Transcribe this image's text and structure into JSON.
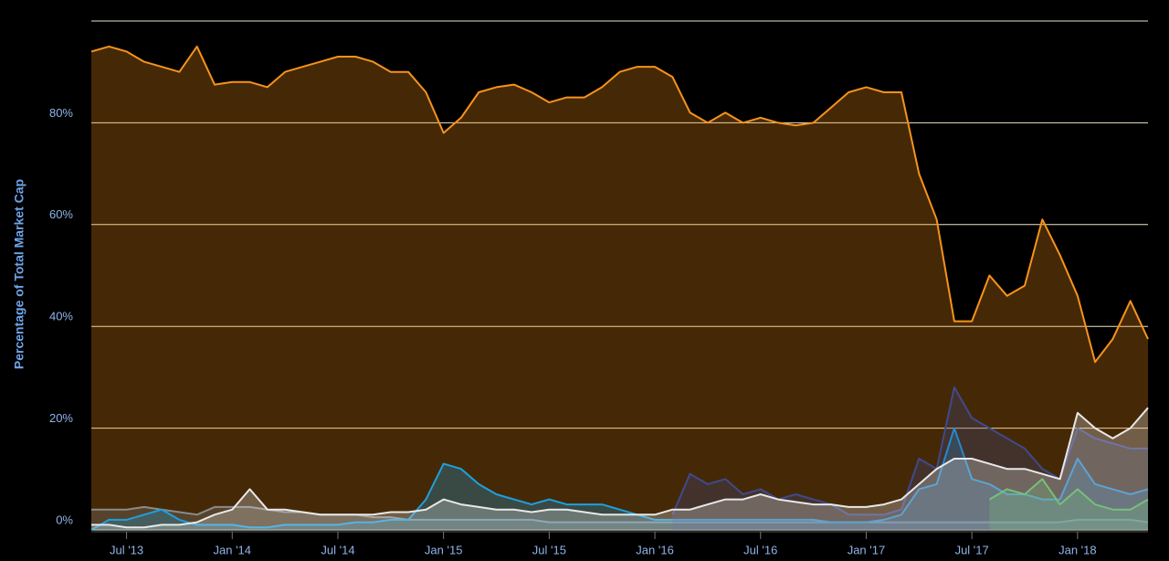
{
  "chart_data": {
    "type": "area",
    "y_label": "Percentage of Total Market Cap",
    "x": [
      "2013-05",
      "2013-06",
      "2013-07",
      "2013-08",
      "2013-09",
      "2013-10",
      "2013-11",
      "2013-12",
      "2014-01",
      "2014-02",
      "2014-03",
      "2014-04",
      "2014-05",
      "2014-06",
      "2014-07",
      "2014-08",
      "2014-09",
      "2014-10",
      "2014-11",
      "2014-12",
      "2015-01",
      "2015-02",
      "2015-03",
      "2015-04",
      "2015-05",
      "2015-06",
      "2015-07",
      "2015-08",
      "2015-09",
      "2015-10",
      "2015-11",
      "2015-12",
      "2016-01",
      "2016-02",
      "2016-03",
      "2016-04",
      "2016-05",
      "2016-06",
      "2016-07",
      "2016-08",
      "2016-09",
      "2016-10",
      "2016-11",
      "2016-12",
      "2017-01",
      "2017-02",
      "2017-03",
      "2017-04",
      "2017-05",
      "2017-06",
      "2017-07",
      "2017-08",
      "2017-09",
      "2017-10",
      "2017-11",
      "2017-12",
      "2018-01",
      "2018-02",
      "2018-03",
      "2018-04",
      "2018-05"
    ],
    "xlim": [
      "2013-05",
      "2018-05"
    ],
    "xticks": [
      {
        "value": "2013-07",
        "label": "Jul '13"
      },
      {
        "value": "2014-01",
        "label": "Jan '14"
      },
      {
        "value": "2014-07",
        "label": "Jul '14"
      },
      {
        "value": "2015-01",
        "label": "Jan '15"
      },
      {
        "value": "2015-07",
        "label": "Jul '15"
      },
      {
        "value": "2016-01",
        "label": "Jan '16"
      },
      {
        "value": "2016-07",
        "label": "Jul '16"
      },
      {
        "value": "2017-01",
        "label": "Jan '17"
      },
      {
        "value": "2017-07",
        "label": "Jul '17"
      },
      {
        "value": "2018-01",
        "label": "Jan '18"
      }
    ],
    "ylim": [
      0,
      100
    ],
    "yticks": [
      {
        "value": 0,
        "label": "0%"
      },
      {
        "value": 20,
        "label": "20%"
      },
      {
        "value": 40,
        "label": "40%"
      },
      {
        "value": 60,
        "label": "60%"
      },
      {
        "value": 80,
        "label": "80%"
      }
    ],
    "grid": true,
    "series": [
      {
        "color": "#f7931a",
        "values": [
          94,
          95,
          94,
          92,
          91,
          90,
          95,
          87.5,
          88,
          88,
          87,
          90,
          91,
          92,
          93,
          93,
          92,
          90,
          90,
          86,
          78,
          81,
          86,
          87,
          87.5,
          86,
          84,
          85,
          85,
          87,
          90,
          91,
          91,
          89,
          82,
          80,
          82,
          80,
          81,
          80,
          79.5,
          80,
          83,
          86,
          87,
          86,
          86,
          70,
          61,
          41,
          41,
          50,
          46,
          48,
          61,
          54,
          46,
          33,
          37.5,
          45,
          37.5
        ]
      },
      {
        "color": "#8a8a8a",
        "values": [
          4,
          4,
          4,
          4.5,
          4,
          3.5,
          3,
          4.5,
          4.5,
          4.5,
          4,
          3.5,
          3.5,
          3,
          3,
          3,
          2.5,
          2.5,
          2,
          2,
          2,
          2,
          2,
          2,
          2,
          2,
          1.5,
          1.5,
          1.5,
          1.5,
          1.5,
          1.5,
          1.5,
          1.5,
          1.5,
          1.5,
          1.5,
          1.5,
          1.5,
          1.5,
          1.5,
          1.5,
          1.5,
          1.5,
          1.5,
          1.5,
          1.5,
          1.5,
          1.5,
          1.5,
          1.5,
          1.5,
          1.5,
          1.5,
          1.5,
          1.5,
          2,
          2,
          2,
          2,
          1.5
        ]
      },
      {
        "color": "#1ba1e2",
        "values": [
          0,
          2,
          2,
          3,
          4,
          2,
          1,
          1,
          1,
          0.5,
          0.5,
          1,
          1,
          1,
          1,
          1.5,
          1.5,
          2,
          2,
          6,
          13,
          12,
          9,
          7,
          6,
          5,
          6,
          5,
          5,
          5,
          4,
          3,
          2,
          2,
          2,
          2,
          2,
          2,
          2,
          2,
          2,
          2,
          1.5,
          1.5,
          1.5,
          2,
          3,
          8,
          9,
          20,
          10,
          9,
          7,
          7,
          6,
          6,
          14,
          9,
          8,
          7,
          8
        ]
      },
      {
        "color": "#3f4a8c",
        "values": [
          null,
          null,
          null,
          null,
          null,
          null,
          null,
          null,
          null,
          null,
          null,
          null,
          null,
          null,
          null,
          null,
          null,
          null,
          null,
          null,
          null,
          null,
          null,
          null,
          null,
          null,
          null,
          null,
          null,
          null,
          null,
          null,
          null,
          3,
          11,
          9,
          10,
          7,
          8,
          6,
          7,
          6,
          5,
          3,
          3,
          3,
          4,
          14,
          12,
          28,
          22,
          20,
          18,
          16,
          12,
          10,
          20,
          18,
          17,
          16,
          16
        ]
      },
      {
        "color": "#4caf50",
        "values": [
          null,
          null,
          null,
          null,
          null,
          null,
          null,
          null,
          null,
          null,
          null,
          null,
          null,
          null,
          null,
          null,
          null,
          null,
          null,
          null,
          null,
          null,
          null,
          null,
          null,
          null,
          null,
          null,
          null,
          null,
          null,
          null,
          null,
          null,
          null,
          null,
          null,
          null,
          null,
          null,
          null,
          null,
          null,
          null,
          null,
          null,
          null,
          null,
          null,
          null,
          null,
          6,
          8,
          7,
          10,
          5,
          8,
          5,
          4,
          4,
          6
        ]
      },
      {
        "color": "#e8e8e8",
        "values": [
          1,
          1,
          0.5,
          0.5,
          1,
          1,
          1.5,
          3,
          4,
          8,
          4,
          4,
          3.5,
          3,
          3,
          3,
          3,
          3.5,
          3.5,
          4,
          6,
          5,
          4.5,
          4,
          4,
          3.5,
          4,
          4,
          3.5,
          3,
          3,
          3,
          3,
          4,
          4,
          5,
          6,
          6,
          7,
          6,
          5.5,
          5,
          5,
          4.5,
          4.5,
          5,
          6,
          9,
          12,
          14,
          14,
          13,
          12,
          12,
          11,
          10,
          23,
          20,
          18,
          20,
          24
        ]
      }
    ]
  }
}
